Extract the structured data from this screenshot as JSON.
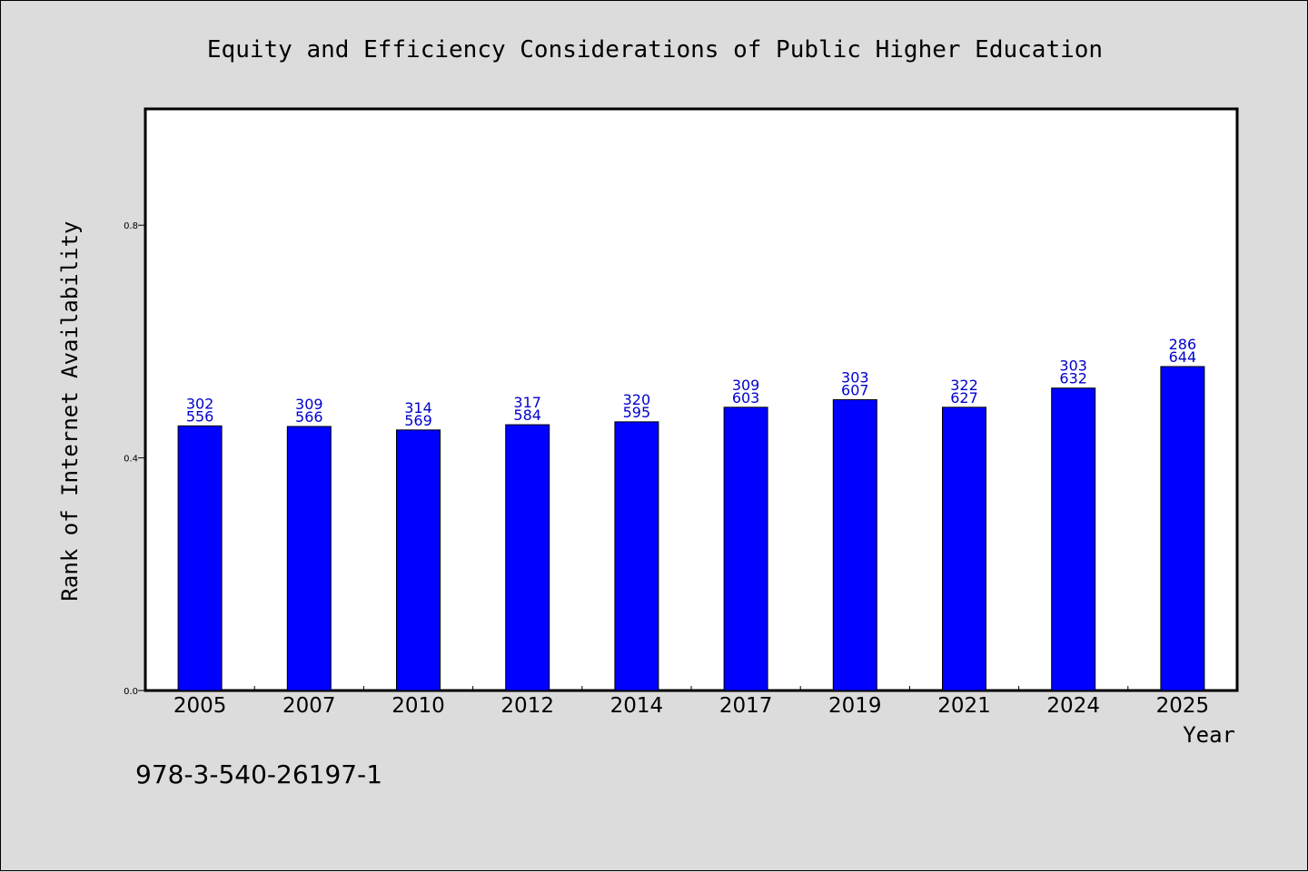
{
  "chart_data": {
    "type": "bar",
    "title": "Equity and Efficiency Considerations of Public Higher Education",
    "xlabel": "Year",
    "ylabel": "Rank of Internet Availability",
    "categories": [
      "2005",
      "2007",
      "2010",
      "2012",
      "2014",
      "2017",
      "2019",
      "2021",
      "2024",
      "2025"
    ],
    "series": [
      {
        "values": [
          0.455,
          0.454,
          0.448,
          0.457,
          0.462,
          0.487,
          0.5,
          0.487,
          0.52,
          0.557
        ],
        "color": "#0000ff"
      }
    ],
    "annotations_top": [
      "302",
      "309",
      "314",
      "317",
      "320",
      "309",
      "303",
      "322",
      "303",
      "286"
    ],
    "annotations_bottom": [
      "556",
      "566",
      "569",
      "584",
      "595",
      "603",
      "607",
      "627",
      "632",
      "644"
    ],
    "yticks": [
      0.0,
      0.4,
      0.8
    ],
    "ytick_labels": [
      "0.0",
      "0.4",
      "0.8"
    ],
    "ylim": [
      0,
      1.0
    ],
    "grid": false,
    "legend": "none"
  },
  "footer": {
    "isbn": "978-3-540-26197-1"
  },
  "colors": {
    "background": "#dcdcdc",
    "plot_background": "#ffffff",
    "bar": "#0000ff",
    "data_label": "#0000cc"
  }
}
